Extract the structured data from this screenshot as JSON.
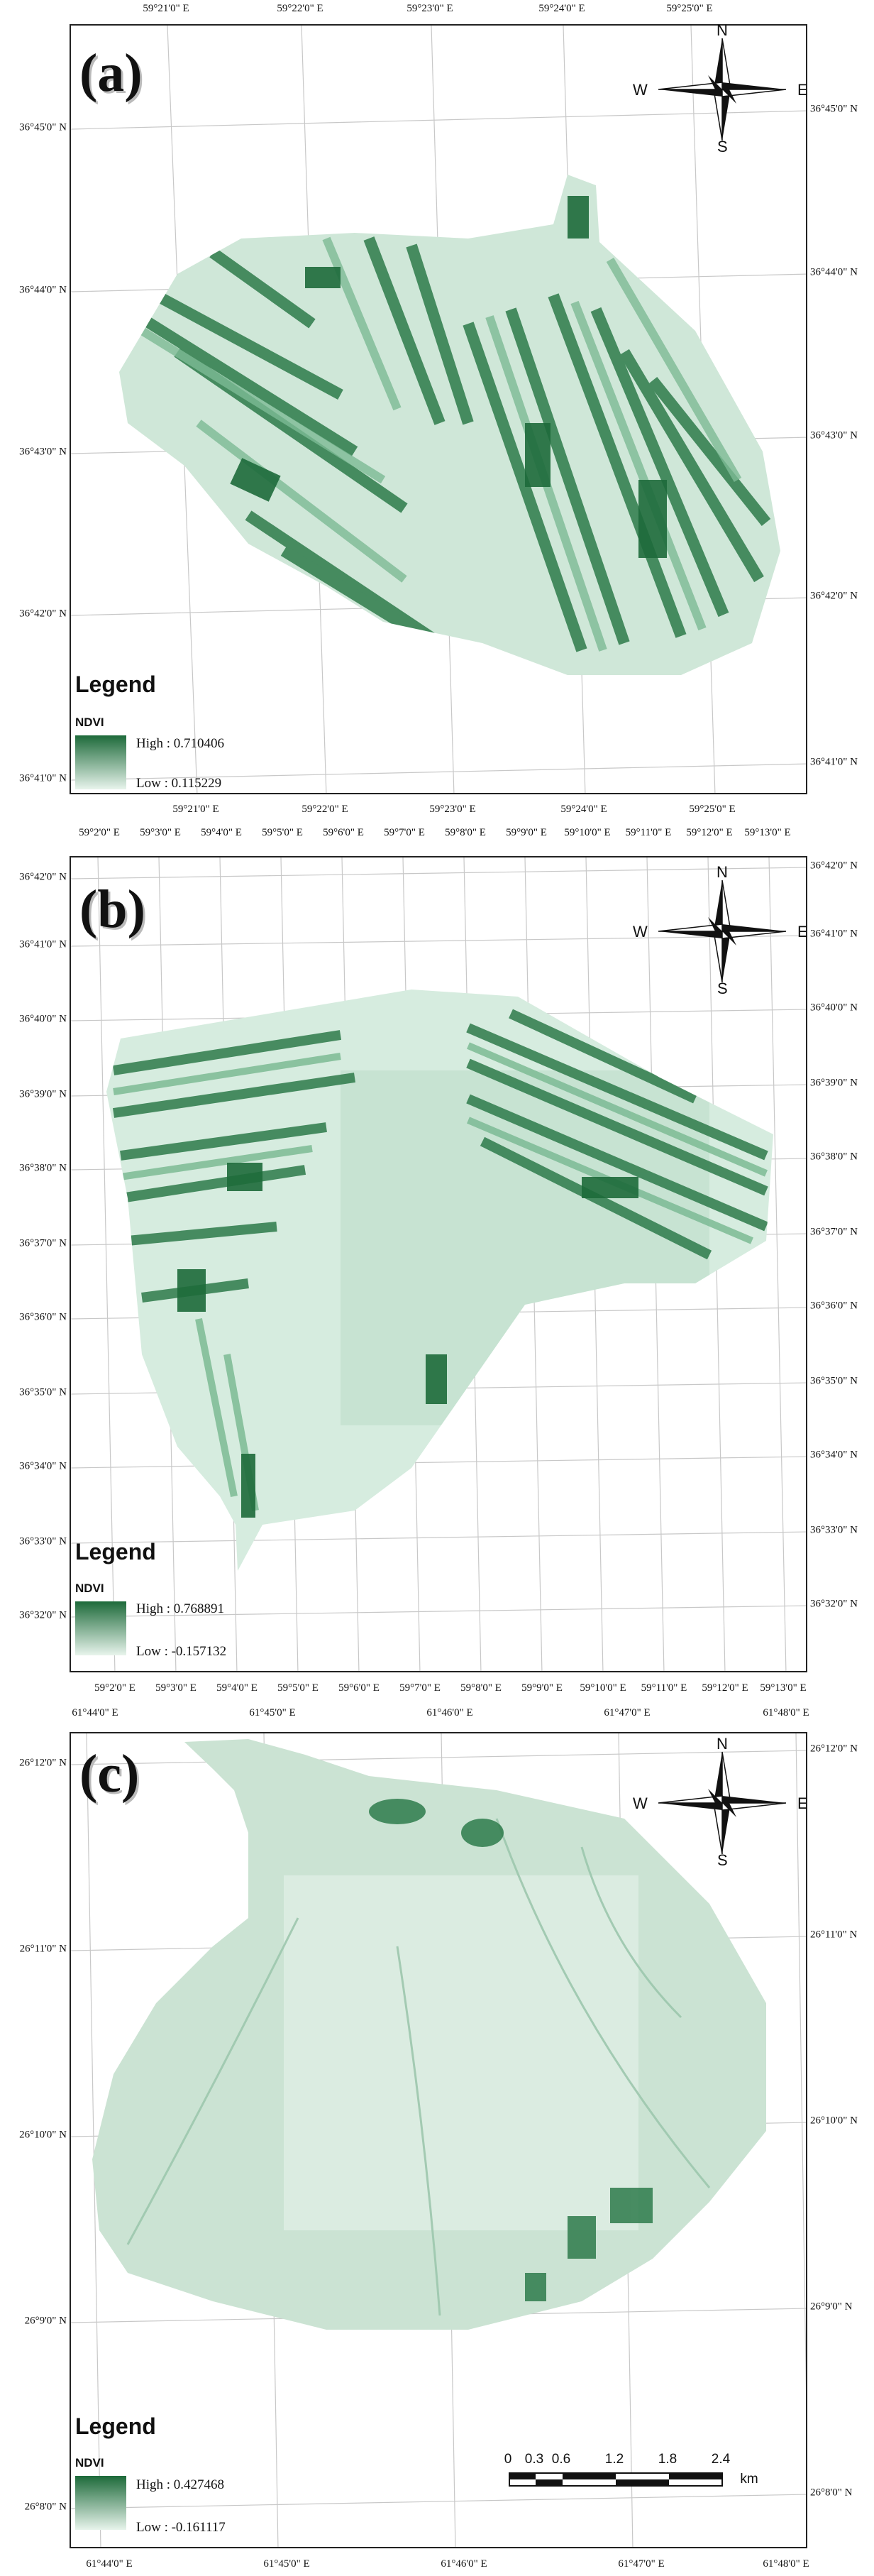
{
  "panels": [
    {
      "label": "(a)",
      "top_ticks": [
        "59°21'0\" E",
        "59°22'0\" E",
        "59°23'0\" E",
        "59°24'0\" E",
        "59°25'0\" E"
      ],
      "bottom_ticks": [
        "59°21'0\" E",
        "59°22'0\" E",
        "59°23'0\" E",
        "59°24'0\" E",
        "59°25'0\" E"
      ],
      "left_ticks": [
        "36°45'0\" N",
        "36°44'0\" N",
        "36°43'0\" N",
        "36°42'0\" N",
        "36°41'0\" N"
      ],
      "right_ticks": [
        "36°45'0\" N",
        "36°44'0\" N",
        "36°43'0\" N",
        "36°42'0\" N",
        "36°41'0\" N"
      ],
      "legend": {
        "title": "Legend",
        "field": "NDVI",
        "high": "High : 0.710406",
        "low": "Low : 0.115229"
      },
      "compass": {
        "n": "N",
        "s": "S",
        "e": "E",
        "w": "W"
      }
    },
    {
      "label": "(b)",
      "top_ticks": [
        "59°2'0\" E",
        "59°3'0\" E",
        "59°4'0\" E",
        "59°5'0\" E",
        "59°6'0\" E",
        "59°7'0\" E",
        "59°8'0\" E",
        "59°9'0\" E",
        "59°10'0\" E",
        "59°11'0\" E",
        "59°12'0\" E",
        "59°13'0\" E"
      ],
      "bottom_ticks": [
        "59°2'0\" E",
        "59°3'0\" E",
        "59°4'0\" E",
        "59°5'0\" E",
        "59°6'0\" E",
        "59°7'0\" E",
        "59°8'0\" E",
        "59°9'0\" E",
        "59°10'0\" E",
        "59°11'0\" E",
        "59°12'0\" E",
        "59°13'0\" E"
      ],
      "left_ticks": [
        "36°42'0\" N",
        "36°41'0\" N",
        "36°40'0\" N",
        "36°39'0\" N",
        "36°38'0\" N",
        "36°37'0\" N",
        "36°36'0\" N",
        "36°35'0\" N",
        "36°34'0\" N",
        "36°33'0\" N",
        "36°32'0\" N"
      ],
      "right_ticks": [
        "36°42'0\" N",
        "36°41'0\" N",
        "36°40'0\" N",
        "36°39'0\" N",
        "36°38'0\" N",
        "36°37'0\" N",
        "36°36'0\" N",
        "36°35'0\" N",
        "36°34'0\" N",
        "36°33'0\" N",
        "36°32'0\" N"
      ],
      "legend": {
        "title": "Legend",
        "field": "NDVI",
        "high": "High : 0.768891",
        "low": "Low : -0.157132"
      },
      "compass": {
        "n": "N",
        "s": "S",
        "e": "E",
        "w": "W"
      }
    },
    {
      "label": "(c)",
      "top_ticks": [
        "61°44'0\" E",
        "61°45'0\" E",
        "61°46'0\" E",
        "61°47'0\" E",
        "61°48'0\" E"
      ],
      "bottom_ticks": [
        "61°44'0\" E",
        "61°45'0\" E",
        "61°46'0\" E",
        "61°47'0\" E",
        "61°48'0\" E"
      ],
      "left_ticks": [
        "26°12'0\" N",
        "26°11'0\" N",
        "26°10'0\" N",
        "26°9'0\" N",
        "26°8'0\" N"
      ],
      "right_ticks": [
        "26°12'0\" N",
        "26°11'0\" N",
        "26°10'0\" N",
        "26°9'0\" N",
        "26°8'0\" N"
      ],
      "legend": {
        "title": "Legend",
        "field": "NDVI",
        "high": "High : 0.427468",
        "low": "Low : -0.161117"
      },
      "compass": {
        "n": "N",
        "s": "S",
        "e": "E",
        "w": "W"
      },
      "scale_bar": {
        "ticks": [
          "0",
          "0.3",
          "0.6",
          "1.2",
          "1.8",
          "2.4"
        ],
        "unit": "km"
      }
    }
  ],
  "colors": {
    "dark_green": "#1d6a3a",
    "mid_green": "#5fa27a",
    "light_green": "#cfe7d8",
    "pale_green": "#e8f4ec"
  }
}
